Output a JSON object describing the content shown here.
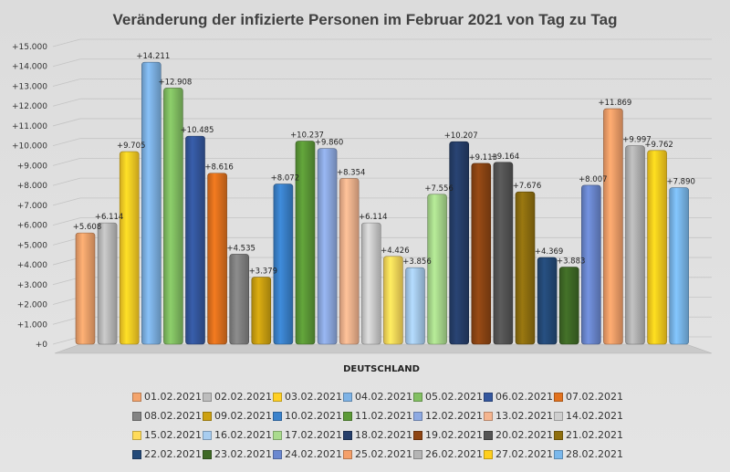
{
  "chart_data": {
    "type": "bar",
    "title": "Veränderung der infizierte Personen im Februar 2021 von Tag zu Tag",
    "xlabel": "DEUTSCHLAND",
    "ylabel": "",
    "ylim": [
      0,
      15000
    ],
    "y_ticks": [
      "+0",
      "+1.000",
      "+2.000",
      "+3.000",
      "+4.000",
      "+5.000",
      "+6.000",
      "+7.000",
      "+8.000",
      "+9.000",
      "+10.000",
      "+11.000",
      "+12.000",
      "+13.000",
      "+14.000",
      "+15.000"
    ],
    "grid": true,
    "legend_position": "bottom",
    "categories": [
      "DEUTSCHLAND"
    ],
    "series": [
      {
        "name": "01.02.2021",
        "value": 5608,
        "label": "+5.608",
        "color": "#f4a46c"
      },
      {
        "name": "02.02.2021",
        "value": 6114,
        "label": "+6.114",
        "color": "#bdbdbd"
      },
      {
        "name": "03.02.2021",
        "value": 9705,
        "label": "+9.705",
        "color": "#ffd024"
      },
      {
        "name": "04.02.2021",
        "value": 14211,
        "label": "+14.211",
        "color": "#7eb3e6"
      },
      {
        "name": "05.02.2021",
        "value": 12908,
        "label": "+12.908",
        "color": "#83c063"
      },
      {
        "name": "06.02.2021",
        "value": 10485,
        "label": "+10.485",
        "color": "#34579e"
      },
      {
        "name": "07.02.2021",
        "value": 8616,
        "label": "+8.616",
        "color": "#e2721e"
      },
      {
        "name": "08.02.2021",
        "value": 4535,
        "label": "+4.535",
        "color": "#838383"
      },
      {
        "name": "09.02.2021",
        "value": 3379,
        "label": "+3.379",
        "color": "#cda111"
      },
      {
        "name": "10.02.2021",
        "value": 8072,
        "label": "+8.072",
        "color": "#3a82cc"
      },
      {
        "name": "11.02.2021",
        "value": 10237,
        "label": "+10.237",
        "color": "#5c9a37"
      },
      {
        "name": "12.02.2021",
        "value": 9860,
        "label": "+9.860",
        "color": "#8eaae2"
      },
      {
        "name": "13.02.2021",
        "value": 8354,
        "label": "+8.354",
        "color": "#f5b58f"
      },
      {
        "name": "14.02.2021",
        "value": 6114,
        "label": "+6.114",
        "color": "#cfcfcf"
      },
      {
        "name": "15.02.2021",
        "value": 4426,
        "label": "+4.426",
        "color": "#ffdb5a"
      },
      {
        "name": "16.02.2021",
        "value": 3856,
        "label": "+3.856",
        "color": "#a8cdf0"
      },
      {
        "name": "17.02.2021",
        "value": 7556,
        "label": "+7.556",
        "color": "#aadb8e"
      },
      {
        "name": "18.02.2021",
        "value": 10207,
        "label": "+10.207",
        "color": "#263f6b"
      },
      {
        "name": "19.02.2021",
        "value": 9113,
        "label": "+9.113",
        "color": "#8e4513"
      },
      {
        "name": "20.02.2021",
        "value": 9164,
        "label": "+9.164",
        "color": "#555555"
      },
      {
        "name": "21.02.2021",
        "value": 7676,
        "label": "+7.676",
        "color": "#8f6f0f"
      },
      {
        "name": "22.02.2021",
        "value": 4369,
        "label": "+4.369",
        "color": "#244a78"
      },
      {
        "name": "23.02.2021",
        "value": 3883,
        "label": "+3.883",
        "color": "#3f6a26"
      },
      {
        "name": "24.02.2021",
        "value": 8007,
        "label": "+8.007",
        "color": "#6b88d0"
      },
      {
        "name": "25.02.2021",
        "value": 11869,
        "label": "+11.869",
        "color": "#f5a06a"
      },
      {
        "name": "26.02.2021",
        "value": 9997,
        "label": "+9.997",
        "color": "#b5b5b5"
      },
      {
        "name": "27.02.2021",
        "value": 9762,
        "label": "+9.762",
        "color": "#ffcf1e"
      },
      {
        "name": "28.02.2021",
        "value": 7890,
        "label": "+7.890",
        "color": "#7ab8ec"
      }
    ]
  }
}
